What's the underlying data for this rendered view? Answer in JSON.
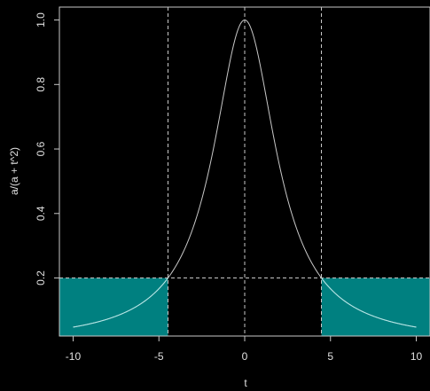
{
  "chart_data": {
    "type": "line",
    "title": "",
    "xlabel": "t",
    "ylabel": "a/(a + t^2)",
    "xlim": [
      -10.8,
      10.8
    ],
    "ylim": [
      0.02,
      1.04
    ],
    "x_ticks": [
      -10,
      -5,
      0,
      5,
      10
    ],
    "x_tick_labels": [
      "-10",
      "-5",
      "0",
      "5",
      "10"
    ],
    "y_ticks": [
      0.2,
      0.4,
      0.6,
      0.8,
      1.0
    ],
    "y_tick_labels": [
      "0.2",
      "0.4",
      "0.6",
      "0.8",
      "1.0"
    ],
    "grid": false,
    "series": [
      {
        "formula": "a/(a + t^2)",
        "parameter_a": 5,
        "x_range": [
          -10,
          10
        ],
        "color": "#c8c8c8"
      }
    ],
    "threshold_y": 0.2,
    "threshold_x": [
      -4.47,
      4.47
    ],
    "vertical_reference_x": [
      -4.47,
      0,
      4.47
    ],
    "shaded_regions": [
      {
        "x_range": [
          -10.8,
          -4.47
        ],
        "y_range": [
          0.02,
          0.2
        ]
      },
      {
        "x_range": [
          4.47,
          10.8
        ],
        "y_range": [
          0.02,
          0.2
        ]
      }
    ],
    "colors": {
      "background": "#000000",
      "shade": "#008080",
      "curve": "#c8c8c8",
      "axis": "#c8c8c8",
      "reference_lines": "#c8c8c8"
    }
  }
}
